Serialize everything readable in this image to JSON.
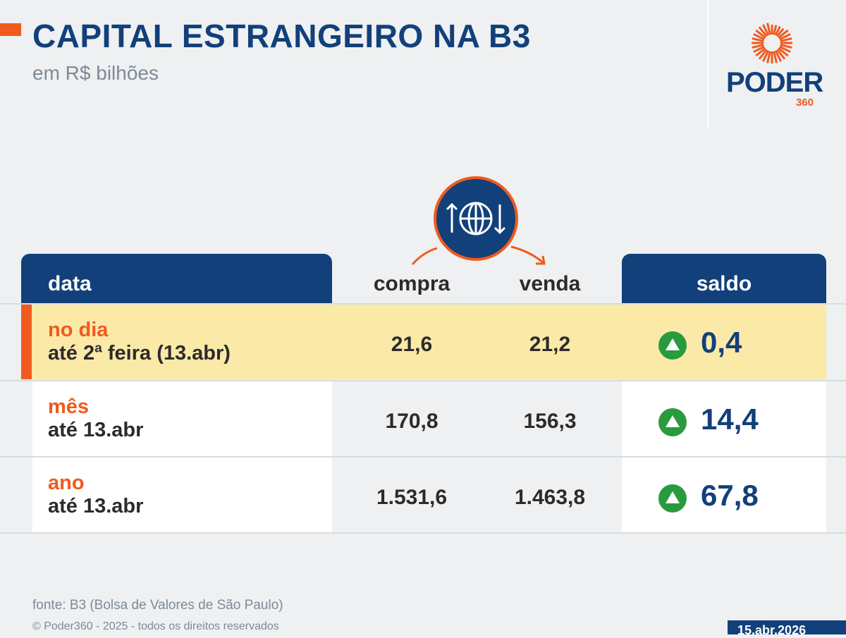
{
  "header": {
    "title": "CAPITAL ESTRANGEIRO NA B3",
    "subtitle": "em R$ bilhões"
  },
  "logo": {
    "word": "PODER",
    "num": "360"
  },
  "table": {
    "columns": {
      "data": "data",
      "compra": "compra",
      "venda": "venda",
      "saldo": "saldo"
    },
    "rows": [
      {
        "label": "no dia",
        "sublabel": "até 2ª feira (13.abr)",
        "compra": "21,6",
        "venda": "21,2",
        "saldo": "0,4",
        "trend": "up"
      },
      {
        "label": "mês",
        "sublabel": "até 13.abr",
        "compra": "170,8",
        "venda": "156,3",
        "saldo": "14,4",
        "trend": "up"
      },
      {
        "label": "ano",
        "sublabel": "até 13.abr",
        "compra": "1.531,6",
        "venda": "1.463,8",
        "saldo": "67,8",
        "trend": "up"
      }
    ]
  },
  "footer": {
    "source": "fonte: B3 (Bolsa de Valores de São Paulo)",
    "copyright": "© Poder360 - 2025 - todos os direitos reservados",
    "date": "15.abr.2026"
  },
  "colors": {
    "navy": "#12407a",
    "orange": "#f05a1e",
    "highlight": "#fbe9a8",
    "up": "#2a9a3e"
  }
}
